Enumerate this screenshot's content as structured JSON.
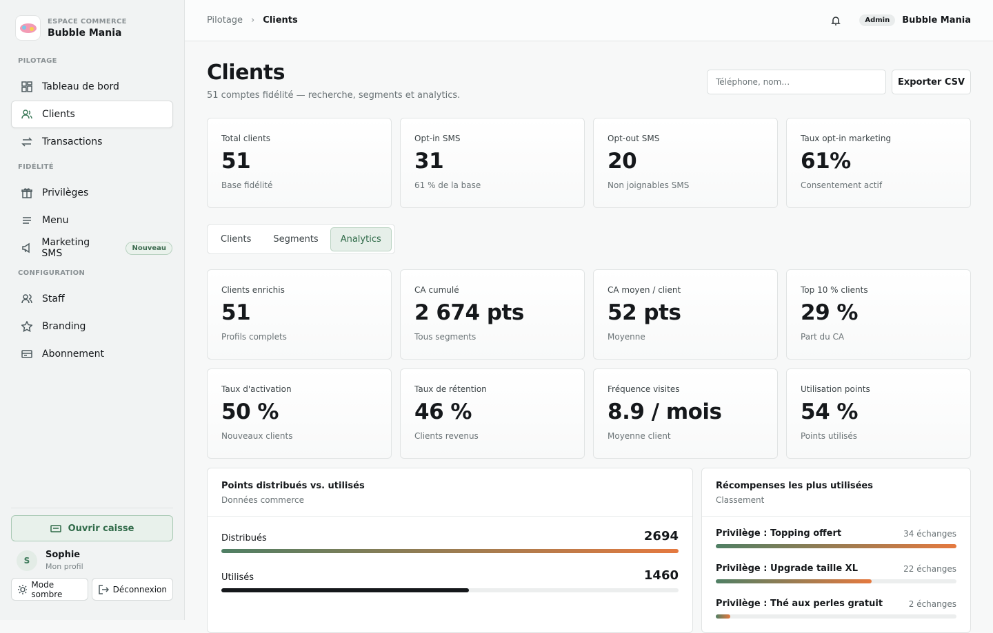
{
  "sidebar": {
    "workspace_label": "ESPACE COMMERCE",
    "workspace_name": "Bubble Mania",
    "sections": [
      {
        "title": "PILOTAGE",
        "items": [
          "Tableau de bord",
          "Clients",
          "Transactions"
        ]
      },
      {
        "title": "FIDÉLITÉ",
        "items": [
          "Privilèges",
          "Menu",
          "Marketing SMS"
        ]
      },
      {
        "title": "CONFIGURATION",
        "items": [
          "Staff",
          "Branding",
          "Abonnement"
        ]
      }
    ],
    "badge": "Nouveau",
    "open_register": "Ouvrir caisse",
    "user": {
      "initial": "S",
      "name": "Sophie",
      "subtitle": "Mon profil"
    },
    "dark_mode": "Mode sombre",
    "logout": "Déconnexion"
  },
  "topbar": {
    "breadcrumb": [
      "Pilotage",
      "Clients"
    ],
    "role": "Admin",
    "account": "Bubble Mania"
  },
  "header": {
    "title": "Clients",
    "subtitle": "51 comptes fidélité — recherche, segments et analytics.",
    "search_placeholder": "Téléphone, nom…",
    "export": "Exporter CSV"
  },
  "summary_cards": [
    {
      "label": "Total clients",
      "value": "51",
      "note": "Base fidélité"
    },
    {
      "label": "Opt-in SMS",
      "value": "31",
      "note": "61 % de la base"
    },
    {
      "label": "Opt-out SMS",
      "value": "20",
      "note": "Non joignables SMS"
    },
    {
      "label": "Taux opt-in marketing",
      "value": "61%",
      "note": "Consentement actif"
    }
  ],
  "tabs": [
    "Clients",
    "Segments",
    "Analytics"
  ],
  "analytics_cards": [
    {
      "label": "Clients enrichis",
      "value": "51",
      "note": "Profils complets"
    },
    {
      "label": "CA cumulé",
      "value": "2 674 pts",
      "note": "Tous segments"
    },
    {
      "label": "CA moyen / client",
      "value": "52 pts",
      "note": "Moyenne"
    },
    {
      "label": "Top 10 % clients",
      "value": "29 %",
      "note": "Part du CA"
    },
    {
      "label": "Taux d'activation",
      "value": "50 %",
      "note": "Nouveaux clients"
    },
    {
      "label": "Taux de rétention",
      "value": "46 %",
      "note": "Clients revenus"
    },
    {
      "label": "Fréquence visites",
      "value": "8.9 / mois",
      "note": "Moyenne client"
    },
    {
      "label": "Utilisation points",
      "value": "54 %",
      "note": "Points utilisés"
    }
  ],
  "points_panel": {
    "title": "Points distribués vs. utilisés",
    "subtitle": "Données commerce",
    "rows": [
      {
        "label": "Distribués",
        "value": 2694
      },
      {
        "label": "Utilisés",
        "value": 1460
      }
    ]
  },
  "rewards_panel": {
    "title": "Récompenses les plus utilisées",
    "subtitle": "Classement",
    "rows": [
      {
        "label": "Privilège : Topping offert",
        "count": 34,
        "count_label": "34 échanges"
      },
      {
        "label": "Privilège : Upgrade taille XL",
        "count": 22,
        "count_label": "22 échanges"
      },
      {
        "label": "Privilège : Thé aux perles gratuit",
        "count": 2,
        "count_label": "2 échanges"
      }
    ]
  }
}
